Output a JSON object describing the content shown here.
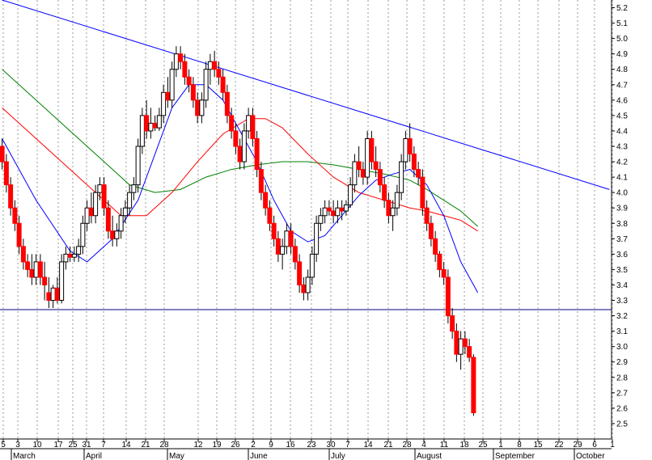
{
  "chart_data": {
    "type": "candlestick",
    "title": "",
    "xlabel": "",
    "ylabel": "",
    "ylim": [
      2.4,
      5.25
    ],
    "y_ticks": [
      2.5,
      2.6,
      2.7,
      2.8,
      2.9,
      3.0,
      3.1,
      3.2,
      3.3,
      3.4,
      3.5,
      3.6,
      3.7,
      3.8,
      3.9,
      4.0,
      4.1,
      4.2,
      4.3,
      4.4,
      4.5,
      4.6,
      4.7,
      4.8,
      4.9,
      5.0,
      5.1,
      5.2
    ],
    "x_day_labels": [
      "5",
      "3",
      "10",
      "17",
      "25",
      "31",
      "7",
      "14",
      "21",
      "28",
      "12",
      "19",
      "26",
      "2",
      "9",
      "16",
      "23",
      "30",
      "7",
      "14",
      "21",
      "28",
      "4",
      "11",
      "18",
      "25",
      "1",
      "8",
      "15",
      "22",
      "29",
      "6",
      "1"
    ],
    "x_months": [
      "March",
      "April",
      "May",
      "June",
      "July",
      "August",
      "September",
      "October"
    ],
    "grid": "vertical dotted",
    "colors": {
      "up": "#ffffff",
      "down": "#ff0000",
      "sma_fast": "#0000ff",
      "sma_mid": "#ff0000",
      "sma_slow": "#008000",
      "trendline": "#0000ff",
      "support": "#000080"
    },
    "support_line": 3.24,
    "trendline": [
      [
        0,
        5.25
      ],
      [
        143,
        4.02
      ]
    ],
    "candles": [
      [
        4.3,
        4.35,
        4.15,
        4.2
      ],
      [
        4.2,
        4.25,
        4.0,
        4.05
      ],
      [
        4.05,
        4.1,
        3.85,
        3.9
      ],
      [
        3.9,
        3.95,
        3.75,
        3.8
      ],
      [
        3.8,
        3.85,
        3.6,
        3.65
      ],
      [
        3.65,
        3.7,
        3.5,
        3.55
      ],
      [
        3.55,
        3.6,
        3.45,
        3.5
      ],
      [
        3.5,
        3.6,
        3.4,
        3.45
      ],
      [
        3.45,
        3.6,
        3.4,
        3.55
      ],
      [
        3.55,
        3.6,
        3.4,
        3.45
      ],
      [
        3.45,
        3.55,
        3.3,
        3.4
      ],
      [
        3.35,
        3.45,
        3.25,
        3.3
      ],
      [
        3.3,
        3.4,
        3.25,
        3.38
      ],
      [
        3.38,
        3.45,
        3.28,
        3.3
      ],
      [
        3.3,
        3.6,
        3.28,
        3.55
      ],
      [
        3.55,
        3.65,
        3.5,
        3.6
      ],
      [
        3.6,
        3.65,
        3.55,
        3.58
      ],
      [
        3.58,
        3.65,
        3.55,
        3.6
      ],
      [
        3.6,
        3.7,
        3.55,
        3.65
      ],
      [
        3.65,
        3.85,
        3.6,
        3.8
      ],
      [
        3.8,
        3.95,
        3.75,
        3.9
      ],
      [
        3.9,
        4.0,
        3.8,
        3.85
      ],
      [
        3.85,
        4.05,
        3.8,
        4.0
      ],
      [
        4.0,
        4.1,
        3.95,
        4.05
      ],
      [
        4.05,
        4.1,
        3.85,
        3.9
      ],
      [
        3.9,
        3.95,
        3.7,
        3.75
      ],
      [
        3.75,
        3.85,
        3.65,
        3.7
      ],
      [
        3.7,
        3.8,
        3.65,
        3.75
      ],
      [
        3.75,
        3.9,
        3.7,
        3.85
      ],
      [
        3.85,
        3.95,
        3.8,
        3.9
      ],
      [
        3.9,
        4.05,
        3.85,
        4.0
      ],
      [
        4.0,
        4.1,
        3.95,
        4.05
      ],
      [
        4.05,
        4.35,
        4.0,
        4.3
      ],
      [
        4.3,
        4.55,
        4.25,
        4.5
      ],
      [
        4.5,
        4.6,
        4.35,
        4.4
      ],
      [
        4.4,
        4.55,
        4.35,
        4.45
      ],
      [
        4.45,
        4.5,
        4.4,
        4.42
      ],
      [
        4.42,
        4.55,
        4.4,
        4.5
      ],
      [
        4.5,
        4.7,
        4.45,
        4.65
      ],
      [
        4.65,
        4.75,
        4.55,
        4.6
      ],
      [
        4.6,
        4.85,
        4.55,
        4.8
      ],
      [
        4.8,
        4.95,
        4.75,
        4.9
      ],
      [
        4.9,
        4.95,
        4.8,
        4.85
      ],
      [
        4.85,
        4.9,
        4.7,
        4.75
      ],
      [
        4.75,
        4.8,
        4.65,
        4.7
      ],
      [
        4.7,
        4.75,
        4.55,
        4.6
      ],
      [
        4.6,
        4.65,
        4.45,
        4.5
      ],
      [
        4.5,
        4.65,
        4.45,
        4.6
      ],
      [
        4.6,
        4.85,
        4.55,
        4.8
      ],
      [
        4.8,
        4.9,
        4.7,
        4.85
      ],
      [
        4.85,
        4.92,
        4.75,
        4.8
      ],
      [
        4.8,
        4.85,
        4.7,
        4.75
      ],
      [
        4.75,
        4.8,
        4.6,
        4.65
      ],
      [
        4.65,
        4.7,
        4.45,
        4.5
      ],
      [
        4.5,
        4.55,
        4.35,
        4.4
      ],
      [
        4.4,
        4.45,
        4.25,
        4.3
      ],
      [
        4.3,
        4.35,
        4.15,
        4.2
      ],
      [
        4.2,
        4.45,
        4.15,
        4.4
      ],
      [
        4.4,
        4.55,
        4.35,
        4.5
      ],
      [
        4.5,
        4.55,
        4.3,
        4.35
      ],
      [
        4.35,
        4.4,
        4.1,
        4.15
      ],
      [
        4.15,
        4.2,
        3.95,
        4.0
      ],
      [
        4.0,
        4.05,
        3.85,
        3.9
      ],
      [
        3.9,
        3.95,
        3.75,
        3.8
      ],
      [
        3.8,
        3.85,
        3.65,
        3.7
      ],
      [
        3.7,
        3.75,
        3.55,
        3.6
      ],
      [
        3.6,
        3.7,
        3.5,
        3.65
      ],
      [
        3.65,
        3.8,
        3.6,
        3.75
      ],
      [
        3.75,
        3.8,
        3.6,
        3.65
      ],
      [
        3.65,
        3.7,
        3.5,
        3.55
      ],
      [
        3.55,
        3.6,
        3.35,
        3.4
      ],
      [
        3.4,
        3.45,
        3.3,
        3.35
      ],
      [
        3.35,
        3.5,
        3.3,
        3.45
      ],
      [
        3.45,
        3.65,
        3.4,
        3.6
      ],
      [
        3.6,
        3.85,
        3.55,
        3.8
      ],
      [
        3.8,
        3.9,
        3.75,
        3.85
      ],
      [
        3.85,
        3.95,
        3.8,
        3.9
      ],
      [
        3.9,
        3.95,
        3.85,
        3.88
      ],
      [
        3.88,
        3.95,
        3.8,
        3.85
      ],
      [
        3.85,
        3.95,
        3.8,
        3.9
      ],
      [
        3.9,
        3.95,
        3.82,
        3.88
      ],
      [
        3.88,
        3.95,
        3.85,
        3.92
      ],
      [
        3.92,
        4.1,
        3.9,
        4.05
      ],
      [
        4.05,
        4.25,
        4.0,
        4.2
      ],
      [
        4.2,
        4.3,
        4.1,
        4.15
      ],
      [
        4.15,
        4.2,
        4.05,
        4.1
      ],
      [
        4.1,
        4.4,
        4.05,
        4.35
      ],
      [
        4.35,
        4.4,
        4.15,
        4.2
      ],
      [
        4.2,
        4.3,
        4.1,
        4.15
      ],
      [
        4.15,
        4.2,
        4.0,
        4.05
      ],
      [
        4.05,
        4.1,
        3.9,
        3.95
      ],
      [
        3.95,
        4.0,
        3.8,
        3.85
      ],
      [
        3.85,
        3.95,
        3.75,
        3.9
      ],
      [
        3.9,
        4.05,
        3.85,
        4.0
      ],
      [
        4.0,
        4.25,
        3.95,
        4.2
      ],
      [
        4.2,
        4.4,
        4.15,
        4.35
      ],
      [
        4.35,
        4.45,
        4.2,
        4.25
      ],
      [
        4.25,
        4.3,
        4.1,
        4.15
      ],
      [
        4.15,
        4.2,
        4.05,
        4.1
      ],
      [
        4.1,
        4.15,
        3.85,
        3.9
      ],
      [
        3.9,
        3.95,
        3.75,
        3.8
      ],
      [
        3.8,
        3.85,
        3.65,
        3.7
      ],
      [
        3.7,
        3.75,
        3.55,
        3.6
      ],
      [
        3.6,
        3.62,
        3.45,
        3.5
      ],
      [
        3.5,
        3.55,
        3.4,
        3.45
      ],
      [
        3.45,
        3.5,
        3.15,
        3.2
      ],
      [
        3.2,
        3.25,
        3.05,
        3.1
      ],
      [
        3.1,
        3.15,
        2.9,
        2.95
      ],
      [
        2.95,
        3.1,
        2.85,
        3.05
      ],
      [
        3.05,
        3.1,
        2.95,
        3.0
      ],
      [
        3.0,
        3.05,
        2.9,
        2.93
      ],
      [
        2.93,
        2.95,
        2.55,
        2.57
      ]
    ],
    "sma_fast": [
      [
        0,
        4.35
      ],
      [
        8,
        3.95
      ],
      [
        16,
        3.62
      ],
      [
        20,
        3.55
      ],
      [
        26,
        3.7
      ],
      [
        32,
        3.95
      ],
      [
        36,
        4.25
      ],
      [
        40,
        4.55
      ],
      [
        44,
        4.7
      ],
      [
        48,
        4.7
      ],
      [
        52,
        4.6
      ],
      [
        56,
        4.4
      ],
      [
        60,
        4.2
      ],
      [
        64,
        3.95
      ],
      [
        68,
        3.75
      ],
      [
        72,
        3.68
      ],
      [
        76,
        3.72
      ],
      [
        80,
        3.85
      ],
      [
        84,
        3.98
      ],
      [
        88,
        4.08
      ],
      [
        92,
        4.12
      ],
      [
        96,
        4.15
      ],
      [
        100,
        4.05
      ],
      [
        104,
        3.85
      ],
      [
        108,
        3.55
      ],
      [
        112,
        3.35
      ]
    ],
    "sma_mid": [
      [
        0,
        4.55
      ],
      [
        10,
        4.3
      ],
      [
        20,
        4.05
      ],
      [
        28,
        3.85
      ],
      [
        34,
        3.85
      ],
      [
        40,
        4.0
      ],
      [
        46,
        4.2
      ],
      [
        52,
        4.38
      ],
      [
        58,
        4.48
      ],
      [
        62,
        4.48
      ],
      [
        66,
        4.42
      ],
      [
        72,
        4.25
      ],
      [
        78,
        4.1
      ],
      [
        84,
        4.0
      ],
      [
        90,
        3.95
      ],
      [
        96,
        3.9
      ],
      [
        100,
        3.88
      ],
      [
        104,
        3.85
      ],
      [
        108,
        3.82
      ],
      [
        112,
        3.75
      ]
    ],
    "sma_slow": [
      [
        0,
        4.8
      ],
      [
        8,
        4.6
      ],
      [
        16,
        4.4
      ],
      [
        24,
        4.2
      ],
      [
        30,
        4.05
      ],
      [
        36,
        4.0
      ],
      [
        42,
        4.02
      ],
      [
        48,
        4.1
      ],
      [
        54,
        4.15
      ],
      [
        60,
        4.18
      ],
      [
        66,
        4.2
      ],
      [
        72,
        4.2
      ],
      [
        78,
        4.18
      ],
      [
        84,
        4.15
      ],
      [
        90,
        4.12
      ],
      [
        96,
        4.08
      ],
      [
        100,
        4.02
      ],
      [
        104,
        3.95
      ],
      [
        108,
        3.88
      ],
      [
        112,
        3.78
      ]
    ]
  }
}
